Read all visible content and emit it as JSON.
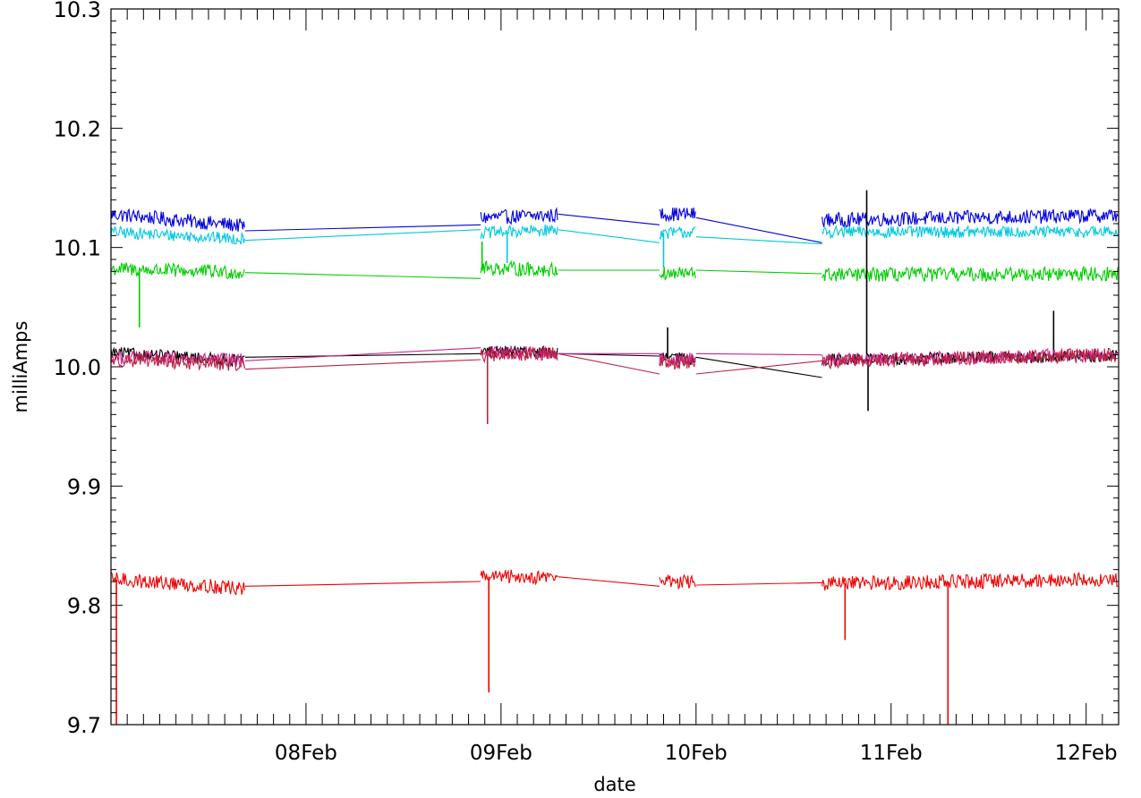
{
  "chart_data": {
    "type": "line",
    "title": "",
    "xlabel": "date",
    "ylabel": "milliAmps",
    "xlim": [
      "2023-02-07T00:00",
      "2023-02-12T04:00"
    ],
    "ylim": [
      9.7,
      10.3
    ],
    "x_ticks": [
      {
        "label": "08Feb",
        "value": "2023-02-08T00:00"
      },
      {
        "label": "09Feb",
        "value": "2023-02-09T00:00"
      },
      {
        "label": "10Feb",
        "value": "2023-02-10T00:00"
      },
      {
        "label": "11Feb",
        "value": "2023-02-11T00:00"
      },
      {
        "label": "12Feb",
        "value": "2023-02-12T00:00"
      }
    ],
    "y_ticks": [
      9.7,
      9.8,
      9.9,
      10.0,
      10.1,
      10.2,
      10.3
    ],
    "y_tick_labels": [
      "9.7",
      "9.8",
      "9.9",
      "10.0",
      "10.1",
      "10.2",
      "10.3"
    ],
    "grid": false,
    "legend": "none",
    "segments": [
      {
        "start": "2023-02-07T00:00",
        "end": "2023-02-07T16:30"
      },
      {
        "start": "2023-02-08T21:30",
        "end": "2023-02-09T07:00"
      },
      {
        "start": "2023-02-09T19:30",
        "end": "2023-02-10T00:00"
      },
      {
        "start": "2023-02-10T15:30",
        "end": "2023-02-12T04:00"
      }
    ],
    "series": [
      {
        "color": "#0000dd",
        "noise": 0.006,
        "segment_levels": [
          [
            10.128,
            10.118
          ],
          [
            10.125,
            10.127
          ],
          [
            10.128,
            10.128
          ],
          [
            10.123,
            10.127
          ]
        ],
        "gap_ends": [
          [
            10.114,
            10.119
          ],
          [
            10.128,
            10.119
          ],
          [
            10.125,
            10.104
          ]
        ],
        "spikes": []
      },
      {
        "color": "#00c8e0",
        "noise": 0.005,
        "segment_levels": [
          [
            10.113,
            10.107
          ],
          [
            10.112,
            10.115
          ],
          [
            10.112,
            10.113
          ],
          [
            10.113,
            10.113
          ]
        ],
        "gap_ends": [
          [
            10.106,
            10.115
          ],
          [
            10.115,
            10.104
          ],
          [
            10.109,
            10.103
          ]
        ],
        "spikes": [
          {
            "t": "2023-02-09T00:45",
            "v": 10.087
          },
          {
            "t": "2023-02-09T20:00",
            "v": 10.083
          }
        ]
      },
      {
        "color": "#00cc00",
        "noise": 0.006,
        "segment_levels": [
          [
            10.082,
            10.079
          ],
          [
            10.083,
            10.081
          ],
          [
            10.078,
            10.078
          ],
          [
            10.077,
            10.078
          ]
        ],
        "gap_ends": [
          [
            10.079,
            10.074
          ],
          [
            10.081,
            10.081
          ],
          [
            10.081,
            10.078
          ]
        ],
        "spikes": [
          {
            "t": "2023-02-07T03:30",
            "v": 10.033
          },
          {
            "t": "2023-02-08T21:40",
            "v": 10.105
          }
        ]
      },
      {
        "color": "#000000",
        "noise": 0.005,
        "segment_levels": [
          [
            10.012,
            10.005
          ],
          [
            10.013,
            10.012
          ],
          [
            10.008,
            10.006
          ],
          [
            10.006,
            10.009
          ]
        ],
        "gap_ends": [
          [
            10.008,
            10.011
          ],
          [
            10.011,
            10.009
          ],
          [
            10.008,
            9.991
          ]
        ],
        "spikes": [
          {
            "t": "2023-02-10T21:00",
            "v": 10.148
          },
          {
            "t": "2023-02-10T21:10",
            "v": 9.963
          },
          {
            "t": "2023-02-11T20:00",
            "v": 10.047
          },
          {
            "t": "2023-02-09T20:30",
            "v": 10.033
          }
        ]
      },
      {
        "color": "#cc2288",
        "noise": 0.006,
        "segment_levels": [
          [
            10.008,
            10.005
          ],
          [
            10.012,
            10.011
          ],
          [
            10.006,
            10.006
          ],
          [
            10.006,
            10.01
          ]
        ],
        "gap_ends": [
          [
            10.005,
            10.016
          ],
          [
            10.011,
            10.011
          ],
          [
            10.011,
            10.01
          ]
        ],
        "spikes": []
      },
      {
        "color": "#bb2244",
        "noise": 0.006,
        "segment_levels": [
          [
            10.006,
            10.002
          ],
          [
            10.01,
            10.011
          ],
          [
            10.004,
            10.003
          ],
          [
            10.004,
            10.01
          ]
        ],
        "gap_ends": [
          [
            9.998,
            10.006
          ],
          [
            10.011,
            9.994
          ],
          [
            9.994,
            10.005
          ]
        ],
        "spikes": [
          {
            "t": "2023-02-08T22:20",
            "v": 9.952
          }
        ]
      },
      {
        "color": "#ee0000",
        "noise": 0.006,
        "segment_levels": [
          [
            9.822,
            9.814
          ],
          [
            9.824,
            9.824
          ],
          [
            9.821,
            9.819
          ],
          [
            9.818,
            9.822
          ]
        ],
        "gap_ends": [
          [
            9.816,
            9.82
          ],
          [
            9.824,
            9.816
          ],
          [
            9.817,
            9.819
          ]
        ],
        "spikes": [
          {
            "t": "2023-02-07T00:40",
            "v": 9.7
          },
          {
            "t": "2023-02-08T22:30",
            "v": 9.727
          },
          {
            "t": "2023-02-10T18:20",
            "v": 9.771
          },
          {
            "t": "2023-02-11T07:00",
            "v": 9.7
          }
        ]
      }
    ]
  }
}
